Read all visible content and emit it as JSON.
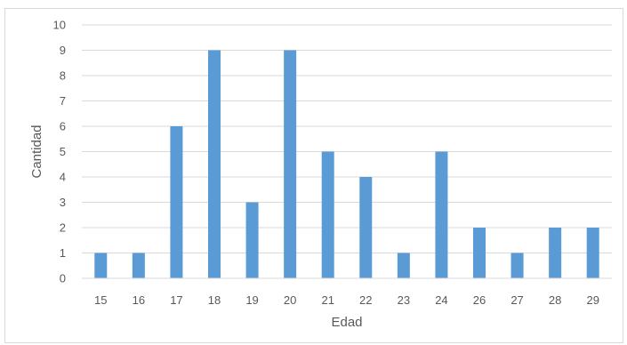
{
  "chart_data": {
    "type": "bar",
    "title": "",
    "xlabel": "Edad",
    "ylabel": "Cantidad",
    "categories": [
      "15",
      "16",
      "17",
      "18",
      "19",
      "20",
      "21",
      "22",
      "23",
      "24",
      "26",
      "27",
      "28",
      "29"
    ],
    "values": [
      1,
      1,
      6,
      9,
      3,
      9,
      5,
      4,
      1,
      5,
      2,
      1,
      2,
      2
    ],
    "ylim": [
      0,
      10
    ],
    "yticks": [
      "0",
      "1",
      "2",
      "3",
      "4",
      "5",
      "6",
      "7",
      "8",
      "9",
      "10"
    ],
    "grid": true,
    "legend": "none",
    "colors": {
      "bar": "#5B9BD5",
      "grid": "#d9d9d9",
      "text": "#595959"
    }
  }
}
